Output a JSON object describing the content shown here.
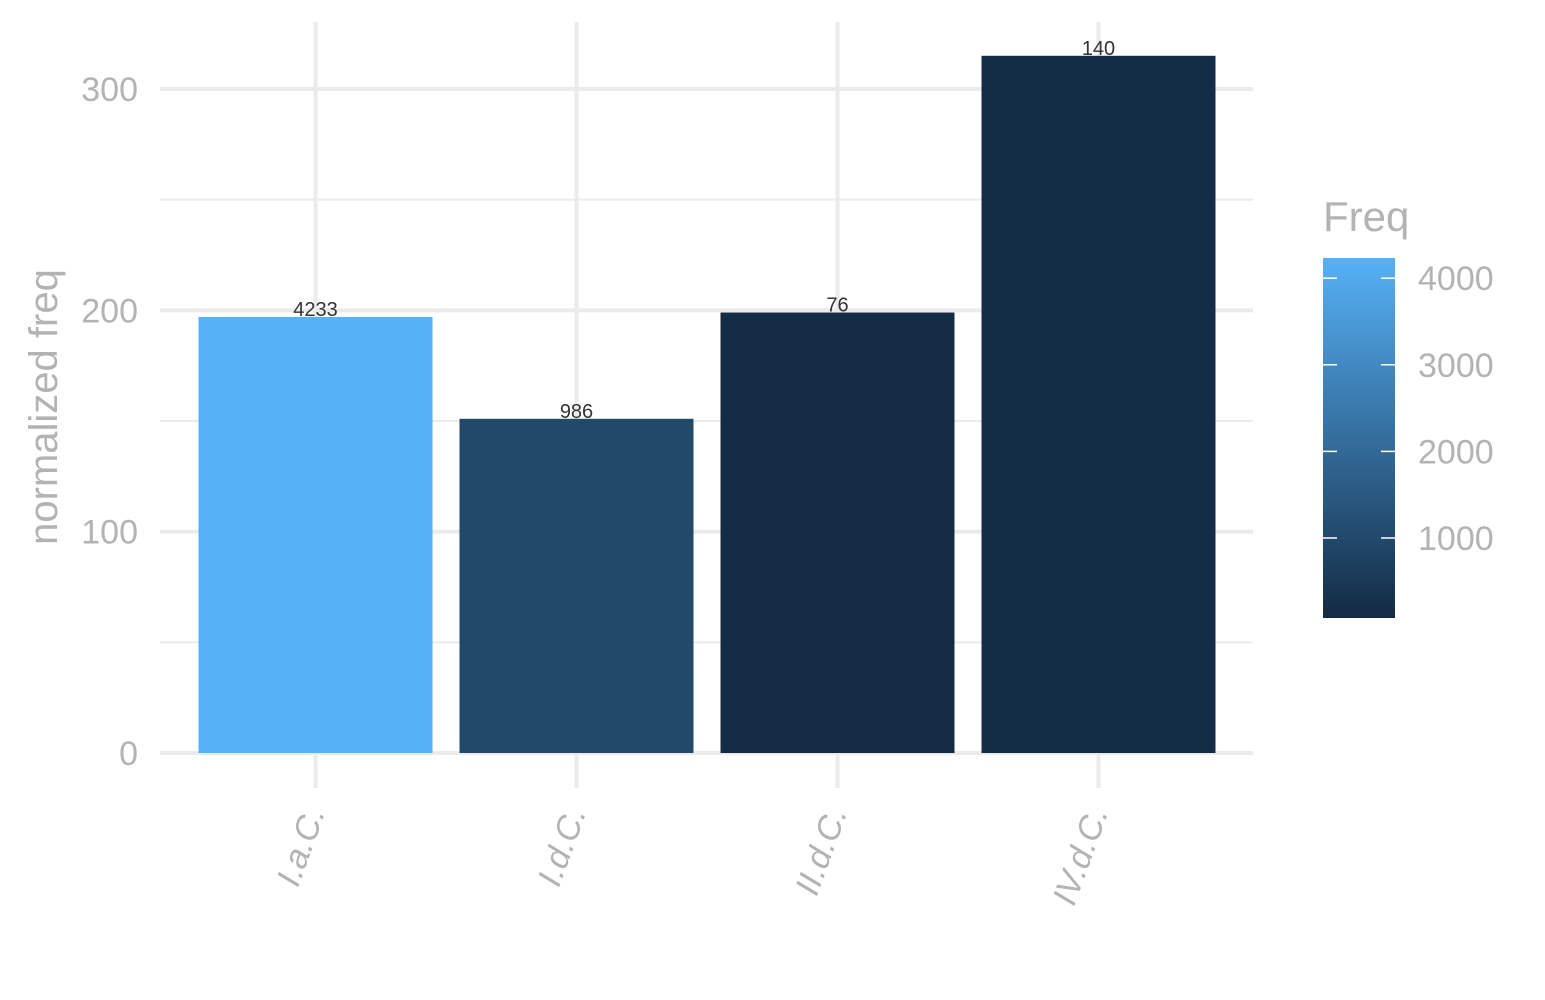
{
  "chart_data": {
    "type": "bar",
    "categories": [
      "I.a.C.",
      "I.d.C.",
      "II.d.C.",
      "IV.d.C."
    ],
    "values": [
      197,
      151,
      199,
      315
    ],
    "data_labels": [
      "4233",
      "986",
      "76",
      "140"
    ],
    "fill_values": [
      4233,
      986,
      76,
      140
    ],
    "title": "",
    "xlabel": "",
    "ylabel": "normalized freq",
    "ylim": [
      0,
      330
    ],
    "y_ticks": [
      0,
      100,
      200,
      300
    ],
    "y_tick_labels": [
      "0",
      "100",
      "200",
      "300"
    ],
    "grid": true,
    "legend": {
      "title": "Freq",
      "placement": "right",
      "type": "colorbar",
      "range": [
        76,
        4233
      ],
      "ticks": [
        1000,
        2000,
        3000,
        4000
      ],
      "tick_labels": [
        "1000",
        "2000",
        "3000",
        "4000"
      ],
      "color_low": "#132b43",
      "color_high": "#56b1f7"
    }
  }
}
